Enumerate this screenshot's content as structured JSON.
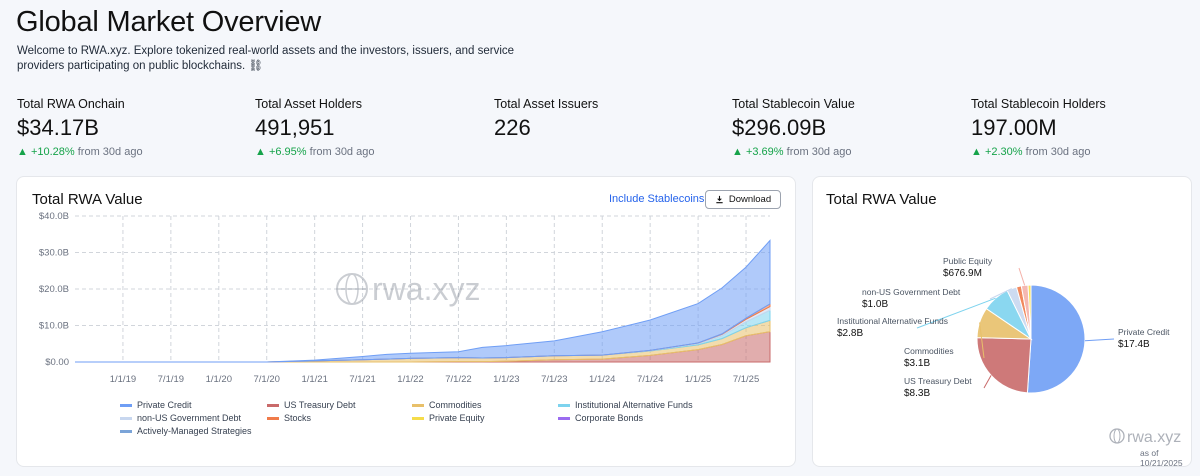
{
  "header": {
    "title": "Global Market Overview",
    "intro": "Welcome to RWA.xyz. Explore tokenized real-world assets and the investors, issuers, and service providers participating on public blockchains. ⛓"
  },
  "stats": [
    {
      "label": "Total RWA Onchain",
      "value": "$34.17B",
      "change": "+10.28%",
      "suffix": "from 30d ago"
    },
    {
      "label": "Total Asset Holders",
      "value": "491,951",
      "change": "+6.95%",
      "suffix": "from 30d ago"
    },
    {
      "label": "Total Asset Issuers",
      "value": "226",
      "change": "",
      "suffix": ""
    },
    {
      "label": "Total Stablecoin Value",
      "value": "$296.09B",
      "change": "+3.69%",
      "suffix": "from 30d ago"
    },
    {
      "label": "Total Stablecoin Holders",
      "value": "197.00M",
      "change": "+2.30%",
      "suffix": "from 30d ago"
    }
  ],
  "area_card": {
    "title": "Total RWA Value",
    "toggle_label": "Include Stablecoins",
    "download_label": "Download",
    "watermark": "rwa.xyz"
  },
  "pie_card": {
    "title": "Total RWA Value",
    "watermark": "rwa.xyz",
    "as_of": "as of 10/21/2025"
  },
  "colors": {
    "private_credit": "#6f9ef5",
    "us_treasury": "#c96a6a",
    "commodities": "#e8c06a",
    "inst_alt": "#7dd3ee",
    "non_us_gov": "#c8d7ef",
    "stocks": "#f07b4a",
    "private_equity": "#f5dc4a",
    "corporate_bonds": "#9b6cf0",
    "active_mgd": "#7ba4d8",
    "public_equity": "#f4b0a8"
  },
  "chart_data": [
    {
      "type": "area",
      "title": "Total RWA Value",
      "stacked": true,
      "x": [
        "2018-07",
        "2019-01",
        "2019-07",
        "2020-01",
        "2020-07",
        "2021-01",
        "2021-07",
        "2021-10",
        "2022-01",
        "2022-07",
        "2022-10",
        "2023-01",
        "2023-07",
        "2024-01",
        "2024-07",
        "2025-01",
        "2025-04",
        "2025-07",
        "2025-10"
      ],
      "x_tick_labels": [
        "1/1/19",
        "7/1/19",
        "1/1/20",
        "7/1/20",
        "1/1/21",
        "7/1/21",
        "1/1/22",
        "7/1/22",
        "1/1/23",
        "7/1/23",
        "1/1/24",
        "7/1/24",
        "1/1/25",
        "7/1/25"
      ],
      "y_tick_labels": [
        "$0.00",
        "$10.0B",
        "$20.0B",
        "$30.0B",
        "$40.0B"
      ],
      "ylim": [
        0,
        40
      ],
      "yunit": "$B",
      "series": [
        {
          "name": "US Treasury Debt",
          "key": "us_treasury",
          "values": [
            0,
            0,
            0,
            0,
            0,
            0,
            0,
            0,
            0,
            0.1,
            0.1,
            0.2,
            0.6,
            0.8,
            1.8,
            3.4,
            4.8,
            7.2,
            8.3
          ]
        },
        {
          "name": "Commodities",
          "key": "commodities",
          "values": [
            0,
            0,
            0,
            0,
            0,
            0.3,
            0.6,
            0.8,
            1.0,
            1.1,
            1.0,
            1.0,
            1.1,
            1.1,
            1.2,
            1.3,
            1.6,
            2.2,
            3.1
          ]
        },
        {
          "name": "Institutional Alternative Funds",
          "key": "inst_alt",
          "values": [
            0,
            0,
            0,
            0,
            0,
            0,
            0,
            0,
            0,
            0,
            0,
            0,
            0,
            0,
            0.1,
            0.3,
            0.8,
            1.6,
            2.8
          ]
        },
        {
          "name": "non-US Government Debt",
          "key": "non_us_gov",
          "values": [
            0,
            0,
            0,
            0,
            0,
            0,
            0,
            0,
            0,
            0,
            0,
            0,
            0,
            0,
            0.1,
            0.2,
            0.4,
            0.7,
            1.0
          ]
        },
        {
          "name": "Stocks",
          "key": "stocks",
          "values": [
            0,
            0,
            0,
            0,
            0,
            0,
            0,
            0,
            0,
            0,
            0,
            0,
            0,
            0,
            0,
            0,
            0.1,
            0.3,
            0.7
          ]
        },
        {
          "name": "Private Credit",
          "key": "private_credit",
          "values": [
            0,
            0,
            0,
            0,
            0,
            0.2,
            0.9,
            1.3,
            1.4,
            1.6,
            2.9,
            3.3,
            4.1,
            6.4,
            8.3,
            10.8,
            12.6,
            14.0,
            17.4
          ]
        }
      ],
      "legend": [
        {
          "name": "Private Credit",
          "key": "private_credit"
        },
        {
          "name": "US Treasury Debt",
          "key": "us_treasury"
        },
        {
          "name": "Commodities",
          "key": "commodities"
        },
        {
          "name": "Institutional Alternative Funds",
          "key": "inst_alt"
        },
        {
          "name": "non-US Government Debt",
          "key": "non_us_gov"
        },
        {
          "name": "Stocks",
          "key": "stocks"
        },
        {
          "name": "Private Equity",
          "key": "private_equity"
        },
        {
          "name": "Corporate Bonds",
          "key": "corporate_bonds"
        },
        {
          "name": "Actively-Managed Strategies",
          "key": "active_mgd"
        }
      ]
    },
    {
      "type": "pie",
      "title": "Total RWA Value",
      "slices": [
        {
          "name": "Private Credit",
          "label": "$17.4B",
          "value": 17.4,
          "key": "private_credit"
        },
        {
          "name": "US Treasury Debt",
          "label": "$8.3B",
          "value": 8.3,
          "key": "us_treasury"
        },
        {
          "name": "Commodities",
          "label": "$3.1B",
          "value": 3.1,
          "key": "commodities"
        },
        {
          "name": "Institutional Alternative Funds",
          "label": "$2.8B",
          "value": 2.8,
          "key": "inst_alt"
        },
        {
          "name": "non-US Government Debt",
          "label": "$1.0B",
          "value": 1.0,
          "key": "non_us_gov"
        },
        {
          "name": "Stocks",
          "label": "",
          "value": 0.5,
          "key": "stocks"
        },
        {
          "name": "Public Equity",
          "label": "$676.9M",
          "value": 0.677,
          "key": "public_equity"
        },
        {
          "name": "Private Equity",
          "label": "",
          "value": 0.3,
          "key": "private_equity"
        }
      ]
    }
  ]
}
